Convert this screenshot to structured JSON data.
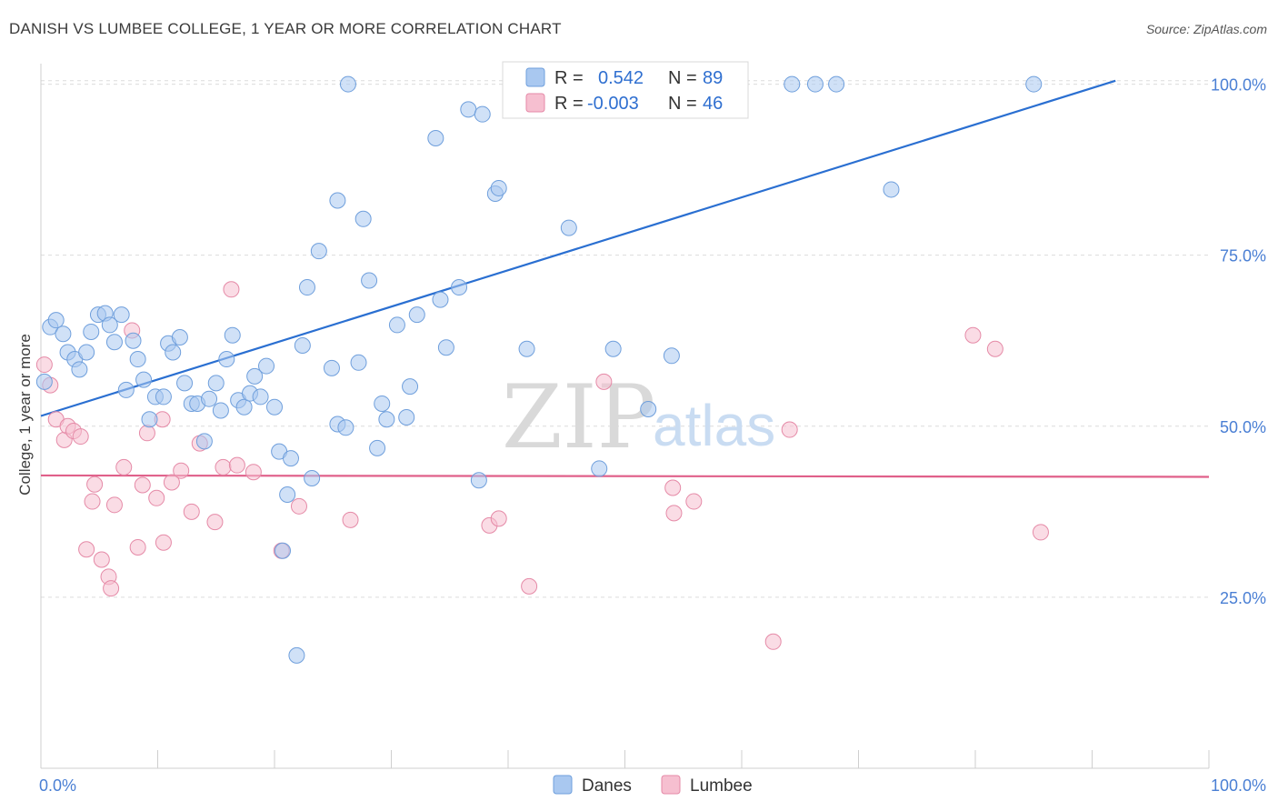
{
  "header": {
    "title": "DANISH VS LUMBEE COLLEGE, 1 YEAR OR MORE CORRELATION CHART",
    "source": "Source: ZipAtlas.com"
  },
  "colors": {
    "danes_fill": "#a9c8f0",
    "danes_stroke": "#6f9fdc",
    "danes_line": "#2a6fd1",
    "lumbee_fill": "#f6bfd0",
    "lumbee_stroke": "#e58aa7",
    "lumbee_line": "#e0608a",
    "grid": "#dcdcdc",
    "tick_text": "#4a7fd4"
  },
  "legend": {
    "rows": [
      {
        "r_label": "R =",
        "r_value": "0.542",
        "n_label": "N =",
        "n_value": "89"
      },
      {
        "r_label": "R =",
        "r_value": "-0.003",
        "n_label": "N =",
        "n_value": "46"
      }
    ]
  },
  "watermark": {
    "zip": "ZIP",
    "atlas": "atlas"
  },
  "chart_data": {
    "type": "scatter",
    "title": "DANISH VS LUMBEE COLLEGE, 1 YEAR OR MORE CORRELATION CHART",
    "xlabel": "",
    "ylabel": "College, 1 year or more",
    "xlim": [
      0,
      100
    ],
    "ylim": [
      0,
      103
    ],
    "x_ticks": [
      "0.0%",
      "100.0%"
    ],
    "y_ticks": [
      "25.0%",
      "50.0%",
      "75.0%",
      "100.0%"
    ],
    "y_tick_values": [
      25,
      50,
      75,
      100
    ],
    "grid": true,
    "legend_position": "top-center",
    "series": [
      {
        "name": "Danes",
        "points": [
          [
            0.3,
            56.5
          ],
          [
            0.8,
            64.5
          ],
          [
            1.3,
            65.5
          ],
          [
            1.9,
            63.5
          ],
          [
            2.3,
            60.8
          ],
          [
            2.9,
            59.8
          ],
          [
            3.3,
            58.3
          ],
          [
            3.9,
            60.8
          ],
          [
            4.3,
            63.8
          ],
          [
            4.9,
            66.3
          ],
          [
            5.5,
            66.5
          ],
          [
            5.9,
            64.8
          ],
          [
            6.3,
            62.3
          ],
          [
            6.9,
            66.3
          ],
          [
            7.3,
            55.3
          ],
          [
            7.9,
            62.5
          ],
          [
            8.3,
            59.8
          ],
          [
            8.8,
            56.8
          ],
          [
            9.3,
            51.0
          ],
          [
            9.8,
            54.3
          ],
          [
            10.5,
            54.3
          ],
          [
            10.9,
            62.1
          ],
          [
            11.3,
            60.8
          ],
          [
            11.9,
            63.0
          ],
          [
            12.3,
            56.3
          ],
          [
            12.9,
            53.3
          ],
          [
            13.4,
            53.3
          ],
          [
            14.0,
            47.8
          ],
          [
            14.4,
            54.0
          ],
          [
            15.0,
            56.3
          ],
          [
            15.4,
            52.3
          ],
          [
            15.9,
            59.8
          ],
          [
            16.4,
            63.3
          ],
          [
            16.9,
            53.8
          ],
          [
            17.4,
            52.8
          ],
          [
            17.9,
            54.8
          ],
          [
            18.3,
            57.3
          ],
          [
            18.8,
            54.3
          ],
          [
            19.3,
            58.8
          ],
          [
            20.0,
            52.8
          ],
          [
            20.4,
            46.3
          ],
          [
            21.4,
            45.3
          ],
          [
            21.1,
            40.0
          ],
          [
            21.9,
            16.5
          ],
          [
            22.4,
            61.8
          ],
          [
            22.8,
            70.3
          ],
          [
            23.2,
            42.4
          ],
          [
            23.8,
            75.6
          ],
          [
            24.9,
            58.5
          ],
          [
            25.4,
            50.3
          ],
          [
            25.4,
            83.0
          ],
          [
            26.1,
            49.8
          ],
          [
            26.3,
            100.0
          ],
          [
            27.2,
            59.3
          ],
          [
            27.6,
            80.3
          ],
          [
            28.1,
            71.3
          ],
          [
            28.8,
            46.8
          ],
          [
            29.2,
            53.3
          ],
          [
            29.6,
            51.0
          ],
          [
            30.5,
            64.8
          ],
          [
            31.3,
            51.3
          ],
          [
            31.6,
            55.8
          ],
          [
            32.2,
            66.3
          ],
          [
            33.8,
            92.1
          ],
          [
            34.2,
            68.5
          ],
          [
            34.7,
            61.5
          ],
          [
            35.8,
            70.3
          ],
          [
            36.6,
            96.3
          ],
          [
            37.5,
            42.1
          ],
          [
            37.8,
            95.6
          ],
          [
            38.9,
            84.0
          ],
          [
            39.2,
            84.8
          ],
          [
            41.5,
            100.0
          ],
          [
            41.6,
            61.3
          ],
          [
            45.2,
            79.0
          ],
          [
            47.8,
            43.8
          ],
          [
            49.0,
            61.3
          ],
          [
            52.0,
            52.5
          ],
          [
            54.0,
            60.3
          ],
          [
            64.3,
            100.0
          ],
          [
            66.3,
            100.0
          ],
          [
            68.1,
            100.0
          ],
          [
            72.8,
            84.6
          ],
          [
            85.0,
            100.0
          ],
          [
            20.7,
            31.8
          ]
        ]
      },
      {
        "name": "Lumbee",
        "points": [
          [
            0.3,
            59.0
          ],
          [
            0.8,
            56.0
          ],
          [
            1.3,
            51.0
          ],
          [
            2.0,
            48.0
          ],
          [
            2.3,
            50.0
          ],
          [
            2.8,
            49.3
          ],
          [
            3.4,
            48.5
          ],
          [
            3.9,
            32.0
          ],
          [
            4.4,
            39.0
          ],
          [
            4.6,
            41.5
          ],
          [
            5.2,
            30.5
          ],
          [
            5.8,
            28.0
          ],
          [
            6.3,
            38.5
          ],
          [
            7.1,
            44.0
          ],
          [
            7.8,
            64.0
          ],
          [
            8.3,
            32.3
          ],
          [
            8.7,
            41.4
          ],
          [
            9.1,
            49.0
          ],
          [
            9.9,
            39.5
          ],
          [
            10.4,
            51.0
          ],
          [
            10.5,
            33.0
          ],
          [
            11.2,
            41.8
          ],
          [
            12.0,
            43.5
          ],
          [
            12.9,
            37.5
          ],
          [
            13.6,
            47.5
          ],
          [
            14.9,
            36.0
          ],
          [
            15.6,
            44.0
          ],
          [
            16.3,
            70.0
          ],
          [
            16.8,
            44.3
          ],
          [
            18.2,
            43.3
          ],
          [
            20.6,
            31.8
          ],
          [
            22.1,
            38.3
          ],
          [
            26.5,
            36.3
          ],
          [
            38.4,
            35.5
          ],
          [
            39.2,
            36.5
          ],
          [
            41.8,
            26.6
          ],
          [
            48.2,
            56.5
          ],
          [
            54.1,
            41.0
          ],
          [
            54.2,
            37.3
          ],
          [
            55.9,
            39.0
          ],
          [
            62.7,
            18.5
          ],
          [
            64.1,
            49.5
          ],
          [
            79.8,
            63.3
          ],
          [
            81.7,
            61.3
          ],
          [
            85.6,
            34.5
          ],
          [
            6.0,
            26.3
          ]
        ]
      }
    ],
    "trendlines": [
      {
        "series": "Danes",
        "x": [
          0,
          92
        ],
        "y": [
          51.5,
          100.5
        ]
      },
      {
        "series": "Lumbee",
        "x": [
          0,
          100
        ],
        "y": [
          42.8,
          42.6
        ]
      }
    ]
  }
}
